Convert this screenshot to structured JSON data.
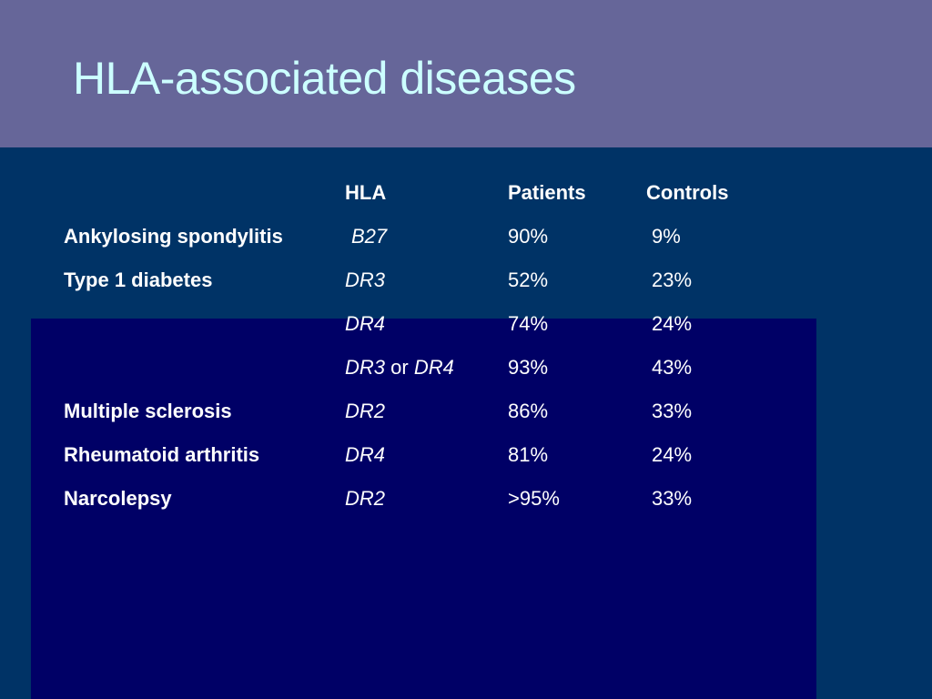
{
  "slide": {
    "title": "HLA-associated diseases"
  },
  "table": {
    "headers": {
      "disease": "",
      "hla": "HLA",
      "patients": "Patients",
      "controls": "Controls"
    },
    "rows": [
      {
        "disease": "Ankylosing spondylitis",
        "hla": "B27",
        "patients": "90%",
        "controls": "9%"
      },
      {
        "disease": "Type 1 diabetes",
        "hla": "DR3",
        "patients": "52%",
        "controls": "23%"
      },
      {
        "disease": "",
        "hla": "DR4",
        "patients": "74%",
        "controls": "24%"
      },
      {
        "disease": "",
        "hla_a": "DR3",
        "hla_conj": "or",
        "hla_b": "DR4",
        "patients": "93%",
        "controls": "43%"
      },
      {
        "disease": "Multiple sclerosis",
        "hla": "DR2",
        "patients": "86%",
        "controls": "33%"
      },
      {
        "disease": "Rheumatoid arthritis",
        "hla": "DR4",
        "patients": "81%",
        "controls": "24%"
      },
      {
        "disease": "Narcolepsy",
        "hla": "DR2",
        "patients": ">95%",
        "controls": "33%"
      }
    ]
  },
  "colors": {
    "background": "#003366",
    "title_band": "#666699",
    "title_text": "#ccffff",
    "inner_panel": "#000066",
    "body_text": "#ffffff"
  }
}
